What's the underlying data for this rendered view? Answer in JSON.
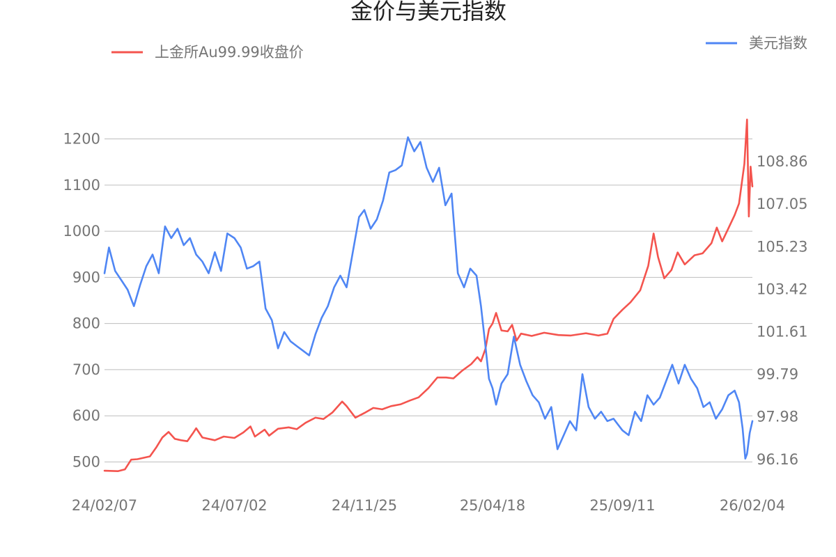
{
  "chart_data": {
    "type": "line",
    "title": "金价与美元指数",
    "x_ticks": [
      "24/02/07",
      "24/07/02",
      "24/11/25",
      "25/04/18",
      "25/09/11",
      "26/02/04"
    ],
    "y_left": {
      "ticks": [
        "1200",
        "1100",
        "1000",
        "900",
        "800",
        "700",
        "600",
        "500"
      ],
      "range": [
        460,
        1320
      ]
    },
    "y_right": {
      "ticks": [
        "108.86",
        "107.05",
        "105.23",
        "103.42",
        "101.61",
        "99.79",
        "97.98",
        "96.16"
      ],
      "range": [
        95.27,
        112.19
      ]
    },
    "legend": {
      "left_position": "top-left",
      "right_position": "top-right"
    },
    "grid": true,
    "series": [
      {
        "name": "上金所Au99.99收盘价",
        "axis": "left",
        "color": "#f4544e",
        "points": [
          [
            "24/02/07",
            481
          ],
          [
            "24/02/22",
            480
          ],
          [
            "24/03/01",
            484
          ],
          [
            "24/03/08",
            505
          ],
          [
            "24/03/15",
            506
          ],
          [
            "24/03/22",
            509
          ],
          [
            "24/03/29",
            512
          ],
          [
            "24/04/05",
            531
          ],
          [
            "24/04/12",
            553
          ],
          [
            "24/04/19",
            565
          ],
          [
            "24/04/26",
            550
          ],
          [
            "24/05/03",
            547
          ],
          [
            "24/05/10",
            545
          ],
          [
            "24/05/17",
            564
          ],
          [
            "24/05/20",
            573
          ],
          [
            "24/05/27",
            553
          ],
          [
            "24/06/10",
            547
          ],
          [
            "24/06/20",
            555
          ],
          [
            "24/07/02",
            552
          ],
          [
            "24/07/12",
            564
          ],
          [
            "24/07/20",
            577
          ],
          [
            "24/07/25",
            555
          ],
          [
            "24/08/05",
            570
          ],
          [
            "24/08/10",
            557
          ],
          [
            "24/08/20",
            572
          ],
          [
            "24/09/01",
            575
          ],
          [
            "24/09/10",
            571
          ],
          [
            "24/09/20",
            585
          ],
          [
            "24/10/01",
            596
          ],
          [
            "24/10/10",
            593
          ],
          [
            "24/10/20",
            607
          ],
          [
            "24/10/31",
            631
          ],
          [
            "24/11/05",
            621
          ],
          [
            "24/11/15",
            596
          ],
          [
            "24/11/25",
            606
          ],
          [
            "24/12/05",
            617
          ],
          [
            "24/12/15",
            614
          ],
          [
            "24/12/25",
            621
          ],
          [
            "25/01/05",
            625
          ],
          [
            "25/01/15",
            633
          ],
          [
            "25/01/25",
            640
          ],
          [
            "25/02/05",
            660
          ],
          [
            "25/02/15",
            683
          ],
          [
            "25/02/25",
            683
          ],
          [
            "25/03/05",
            681
          ],
          [
            "25/03/15",
            698
          ],
          [
            "25/03/25",
            712
          ],
          [
            "25/04/01",
            727
          ],
          [
            "25/04/05",
            718
          ],
          [
            "25/04/10",
            745
          ],
          [
            "25/04/14",
            788
          ],
          [
            "25/04/18",
            800
          ],
          [
            "25/04/22",
            823
          ],
          [
            "25/04/28",
            785
          ],
          [
            "25/05/05",
            783
          ],
          [
            "25/05/10",
            797
          ],
          [
            "25/05/15",
            763
          ],
          [
            "25/05/20",
            778
          ],
          [
            "25/06/01",
            773
          ],
          [
            "25/06/15",
            780
          ],
          [
            "25/07/01",
            775
          ],
          [
            "25/07/15",
            774
          ],
          [
            "25/08/01",
            779
          ],
          [
            "25/08/15",
            774
          ],
          [
            "25/08/25",
            778
          ],
          [
            "25/09/01",
            810
          ],
          [
            "25/09/11",
            830
          ],
          [
            "25/09/20",
            846
          ],
          [
            "25/10/01",
            872
          ],
          [
            "25/10/10",
            925
          ],
          [
            "25/10/16",
            995
          ],
          [
            "25/10/21",
            944
          ],
          [
            "25/10/28",
            898
          ],
          [
            "25/11/05",
            916
          ],
          [
            "25/11/12",
            954
          ],
          [
            "25/11/20",
            928
          ],
          [
            "25/12/01",
            948
          ],
          [
            "25/12/10",
            952
          ],
          [
            "25/12/20",
            974
          ],
          [
            "25/12/26",
            1008
          ],
          [
            "26/01/01",
            978
          ],
          [
            "26/01/08",
            1006
          ],
          [
            "26/01/15",
            1035
          ],
          [
            "26/01/20",
            1060
          ],
          [
            "26/01/26",
            1146
          ],
          [
            "26/01/29",
            1242
          ],
          [
            "26/01/31",
            1032
          ],
          [
            "26/02/02",
            1140
          ],
          [
            "26/02/04",
            1097
          ]
        ]
      },
      {
        "name": "美元指数",
        "axis": "right",
        "color": "#4f86f4",
        "points": [
          [
            "24/02/07",
            104.1
          ],
          [
            "24/02/12",
            105.2
          ],
          [
            "24/02/19",
            104.2
          ],
          [
            "24/02/26",
            103.8
          ],
          [
            "24/03/04",
            103.4
          ],
          [
            "24/03/11",
            102.7
          ],
          [
            "24/03/18",
            103.6
          ],
          [
            "24/03/25",
            104.4
          ],
          [
            "24/04/01",
            104.9
          ],
          [
            "24/04/08",
            104.1
          ],
          [
            "24/04/15",
            106.1
          ],
          [
            "24/04/22",
            105.6
          ],
          [
            "24/04/29",
            106.0
          ],
          [
            "24/05/06",
            105.3
          ],
          [
            "24/05/13",
            105.6
          ],
          [
            "24/05/20",
            104.9
          ],
          [
            "24/05/27",
            104.6
          ],
          [
            "24/06/03",
            104.1
          ],
          [
            "24/06/10",
            105.0
          ],
          [
            "24/06/17",
            104.2
          ],
          [
            "24/06/24",
            105.8
          ],
          [
            "24/07/02",
            105.6
          ],
          [
            "24/07/09",
            105.2
          ],
          [
            "24/07/16",
            104.3
          ],
          [
            "24/07/23",
            104.4
          ],
          [
            "24/07/30",
            104.6
          ],
          [
            "24/08/06",
            102.6
          ],
          [
            "24/08/13",
            102.1
          ],
          [
            "24/08/20",
            100.9
          ],
          [
            "24/08/27",
            101.6
          ],
          [
            "24/09/03",
            101.2
          ],
          [
            "24/09/10",
            101.0
          ],
          [
            "24/09/17",
            100.8
          ],
          [
            "24/09/24",
            100.6
          ],
          [
            "24/10/01",
            101.5
          ],
          [
            "24/10/08",
            102.2
          ],
          [
            "24/10/15",
            102.7
          ],
          [
            "24/10/22",
            103.5
          ],
          [
            "24/10/29",
            104.0
          ],
          [
            "24/11/05",
            103.5
          ],
          [
            "24/11/12",
            105.0
          ],
          [
            "24/11/19",
            106.5
          ],
          [
            "24/11/25",
            106.8
          ],
          [
            "24/12/02",
            106.0
          ],
          [
            "24/12/09",
            106.4
          ],
          [
            "24/12/16",
            107.2
          ],
          [
            "24/12/23",
            108.4
          ],
          [
            "24/12/30",
            108.5
          ],
          [
            "25/01/06",
            108.7
          ],
          [
            "25/01/13",
            109.9
          ],
          [
            "25/01/20",
            109.3
          ],
          [
            "25/01/27",
            109.7
          ],
          [
            "25/02/03",
            108.6
          ],
          [
            "25/02/10",
            108.0
          ],
          [
            "25/02/17",
            108.6
          ],
          [
            "25/02/24",
            107.0
          ],
          [
            "25/03/03",
            107.5
          ],
          [
            "25/03/10",
            104.1
          ],
          [
            "25/03/17",
            103.5
          ],
          [
            "25/03/24",
            104.3
          ],
          [
            "25/03/31",
            104.0
          ],
          [
            "25/04/05",
            102.7
          ],
          [
            "25/04/10",
            101.0
          ],
          [
            "25/04/14",
            99.6
          ],
          [
            "25/04/18",
            99.2
          ],
          [
            "25/04/22",
            98.5
          ],
          [
            "25/04/28",
            99.4
          ],
          [
            "25/05/05",
            99.8
          ],
          [
            "25/05/12",
            101.4
          ],
          [
            "25/05/19",
            100.2
          ],
          [
            "25/05/26",
            99.5
          ],
          [
            "25/06/02",
            98.9
          ],
          [
            "25/06/09",
            98.6
          ],
          [
            "25/06/16",
            97.9
          ],
          [
            "25/06/23",
            98.4
          ],
          [
            "25/06/30",
            96.6
          ],
          [
            "25/07/07",
            97.2
          ],
          [
            "25/07/14",
            97.8
          ],
          [
            "25/07/21",
            97.4
          ],
          [
            "25/07/28",
            99.8
          ],
          [
            "25/08/04",
            98.4
          ],
          [
            "25/08/11",
            97.9
          ],
          [
            "25/08/18",
            98.2
          ],
          [
            "25/08/25",
            97.8
          ],
          [
            "25/09/01",
            97.9
          ],
          [
            "25/09/11",
            97.4
          ],
          [
            "25/09/18",
            97.2
          ],
          [
            "25/09/25",
            98.2
          ],
          [
            "25/10/02",
            97.8
          ],
          [
            "25/10/09",
            98.9
          ],
          [
            "25/10/16",
            98.5
          ],
          [
            "25/10/23",
            98.8
          ],
          [
            "25/10/30",
            99.5
          ],
          [
            "25/11/06",
            100.2
          ],
          [
            "25/11/13",
            99.4
          ],
          [
            "25/11/20",
            100.2
          ],
          [
            "25/11/27",
            99.6
          ],
          [
            "25/12/04",
            99.2
          ],
          [
            "25/12/11",
            98.4
          ],
          [
            "25/12/18",
            98.6
          ],
          [
            "25/12/25",
            97.9
          ],
          [
            "26/01/01",
            98.3
          ],
          [
            "26/01/08",
            98.9
          ],
          [
            "26/01/15",
            99.1
          ],
          [
            "26/01/20",
            98.6
          ],
          [
            "26/01/24",
            97.5
          ],
          [
            "26/01/27",
            96.2
          ],
          [
            "26/01/29",
            96.4
          ],
          [
            "26/02/01",
            97.3
          ],
          [
            "26/02/04",
            97.8
          ]
        ]
      }
    ]
  }
}
